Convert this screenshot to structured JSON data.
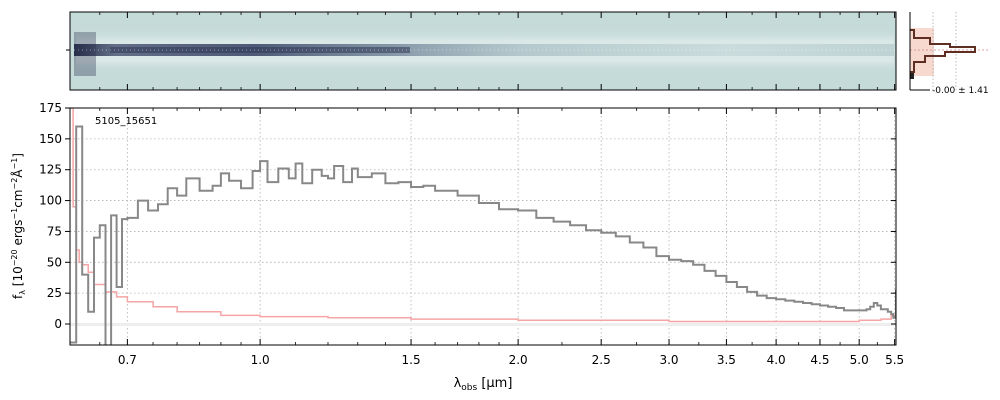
{
  "chart_data": [
    {
      "type": "heatmap",
      "panel": "2D spectrum",
      "colors": {
        "background": "#c5dbd9",
        "dark": "#2a3050",
        "mid": "#8aa8b4",
        "light": "#e9f2f1"
      }
    },
    {
      "type": "line",
      "panel": "profile",
      "annotation": "-0.00 ± 1.41",
      "colors": {
        "fill": "#f8d9cf",
        "line": "#5e2e22"
      }
    },
    {
      "type": "line",
      "panel": "1D spectrum",
      "object_label": "5105_15651",
      "xlabel_main": "λ",
      "xlabel_sub": "obs",
      "xlabel_unit": " [μm]",
      "ylabel": "f_λ [10^-20 ergs^-1 cm^-2 Å^-1]",
      "ylabel_parts": {
        "f": "f",
        "lambda": "λ",
        "open": " [10",
        "exp20": "−20",
        "ergs": " ergs",
        "exp1": "−1",
        "cm": "cm",
        "exp2": "−2",
        "ang": "Å",
        "exp3": "−1",
        "close": "]"
      },
      "x_axis": {
        "scale": "log",
        "min": 0.6,
        "max": 5.52,
        "tick_labels": [
          "0.7",
          "1.0",
          "1.5",
          "2.0",
          "2.5",
          "3.0",
          "3.5",
          "4.0",
          "4.5",
          "5.0",
          "5.5"
        ]
      },
      "y_axis": {
        "min": -17,
        "max": 175,
        "tick_labels": [
          "0",
          "25",
          "50",
          "75",
          "100",
          "125",
          "150",
          "175"
        ]
      },
      "grid": true,
      "series": [
        {
          "role": "flux",
          "color": "#888888",
          "x": [
            0.6,
            0.61,
            0.62,
            0.63,
            0.64,
            0.65,
            0.66,
            0.67,
            0.68,
            0.69,
            0.7,
            0.72,
            0.74,
            0.76,
            0.78,
            0.8,
            0.82,
            0.85,
            0.88,
            0.9,
            0.92,
            0.95,
            0.98,
            1.0,
            1.02,
            1.05,
            1.08,
            1.1,
            1.12,
            1.15,
            1.18,
            1.2,
            1.22,
            1.25,
            1.28,
            1.3,
            1.35,
            1.4,
            1.45,
            1.5,
            1.55,
            1.6,
            1.7,
            1.8,
            1.9,
            2.0,
            2.1,
            2.2,
            2.3,
            2.4,
            2.5,
            2.6,
            2.7,
            2.8,
            2.9,
            3.0,
            3.1,
            3.2,
            3.3,
            3.4,
            3.5,
            3.6,
            3.7,
            3.8,
            3.9,
            4.0,
            4.1,
            4.2,
            4.3,
            4.4,
            4.5,
            4.6,
            4.7,
            4.8,
            4.9,
            5.0,
            5.1,
            5.15,
            5.2,
            5.25,
            5.3,
            5.4,
            5.45,
            5.48,
            5.5,
            5.52
          ],
          "y": [
            -15,
            160,
            40,
            10,
            70,
            80,
            -18,
            88,
            30,
            85,
            86,
            100,
            92,
            97,
            110,
            104,
            118,
            108,
            112,
            122,
            116,
            110,
            124,
            132,
            115,
            126,
            118,
            130,
            114,
            125,
            120,
            118,
            128,
            115,
            126,
            119,
            122,
            114,
            115,
            111,
            112,
            108,
            104,
            98,
            93,
            92,
            86,
            83,
            80,
            76,
            74,
            71,
            66,
            62,
            55,
            52,
            51,
            48,
            43,
            39,
            34,
            30,
            26,
            23,
            21,
            20,
            19,
            18,
            17,
            16,
            15,
            14,
            13,
            11,
            11,
            11,
            12,
            14,
            17,
            15,
            12,
            10,
            8,
            5,
            6,
            28
          ]
        },
        {
          "role": "error",
          "color": "#f5a5a5",
          "x": [
            0.6,
            0.605,
            0.61,
            0.615,
            0.62,
            0.63,
            0.64,
            0.66,
            0.68,
            0.7,
            0.75,
            0.8,
            0.9,
            1.0,
            1.2,
            1.5,
            2.0,
            2.5,
            3.0,
            3.5,
            4.0,
            4.5,
            5.0,
            5.3,
            5.45,
            5.52
          ],
          "y": [
            175,
            95,
            60,
            50,
            48,
            42,
            32,
            26,
            22,
            18,
            14,
            10,
            7,
            6,
            5,
            4,
            3,
            3,
            2,
            2,
            2,
            2,
            3,
            4,
            7,
            12
          ]
        }
      ]
    }
  ]
}
